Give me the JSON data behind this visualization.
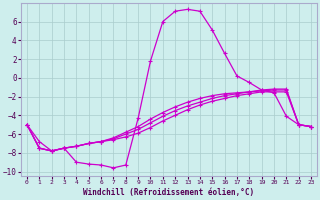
{
  "xlabel": "Windchill (Refroidissement éolien,°C)",
  "bg_color": "#ceeeed",
  "line_color": "#cc00cc",
  "xlim": [
    -0.5,
    23.5
  ],
  "ylim": [
    -10.5,
    8.0
  ],
  "xticks": [
    0,
    1,
    2,
    3,
    4,
    5,
    6,
    7,
    8,
    9,
    10,
    11,
    12,
    13,
    14,
    15,
    16,
    17,
    18,
    19,
    20,
    21,
    22,
    23
  ],
  "yticks": [
    -10,
    -8,
    -6,
    -4,
    -2,
    0,
    2,
    4,
    6
  ],
  "line1_x": [
    0,
    1,
    2,
    3,
    4,
    5,
    6,
    7,
    8,
    9,
    10,
    11,
    12,
    13,
    14,
    15,
    16,
    17,
    18,
    19,
    20,
    21,
    22,
    23
  ],
  "line1_y": [
    -5.0,
    -6.8,
    -7.8,
    -7.5,
    -9.0,
    -9.2,
    -9.3,
    -9.6,
    -9.3,
    -4.3,
    1.8,
    6.0,
    7.1,
    7.3,
    7.1,
    5.1,
    2.6,
    0.2,
    -0.5,
    -1.3,
    -1.6,
    -4.1,
    -5.0,
    -5.2
  ],
  "line2_x": [
    0,
    1,
    2,
    3,
    4,
    5,
    6,
    7,
    8,
    9,
    10,
    11,
    12,
    13,
    14,
    15,
    16,
    17,
    18,
    19,
    20,
    21,
    22,
    23
  ],
  "line2_y": [
    -5.0,
    -7.5,
    -7.8,
    -7.5,
    -7.3,
    -7.0,
    -6.8,
    -6.6,
    -6.3,
    -5.9,
    -5.3,
    -4.6,
    -4.0,
    -3.4,
    -2.9,
    -2.5,
    -2.2,
    -1.9,
    -1.7,
    -1.5,
    -1.5,
    -1.5,
    -5.0,
    -5.2
  ],
  "line3_x": [
    0,
    1,
    2,
    3,
    4,
    5,
    6,
    7,
    8,
    9,
    10,
    11,
    12,
    13,
    14,
    15,
    16,
    17,
    18,
    19,
    20,
    21,
    22,
    23
  ],
  "line3_y": [
    -5.0,
    -7.5,
    -7.8,
    -7.5,
    -7.3,
    -7.0,
    -6.8,
    -6.5,
    -6.0,
    -5.5,
    -4.8,
    -4.1,
    -3.5,
    -3.0,
    -2.6,
    -2.2,
    -1.9,
    -1.7,
    -1.5,
    -1.3,
    -1.2,
    -1.2,
    -5.0,
    -5.2
  ],
  "line4_x": [
    0,
    1,
    2,
    3,
    4,
    5,
    6,
    7,
    8,
    9,
    10,
    11,
    12,
    13,
    14,
    15,
    16,
    17,
    18,
    19,
    20,
    21,
    22,
    23
  ],
  "line4_y": [
    -5.0,
    -7.5,
    -7.8,
    -7.5,
    -7.3,
    -7.0,
    -6.8,
    -6.4,
    -5.8,
    -5.2,
    -4.4,
    -3.7,
    -3.1,
    -2.6,
    -2.2,
    -1.9,
    -1.7,
    -1.6,
    -1.5,
    -1.4,
    -1.3,
    -1.3,
    -5.0,
    -5.2
  ]
}
